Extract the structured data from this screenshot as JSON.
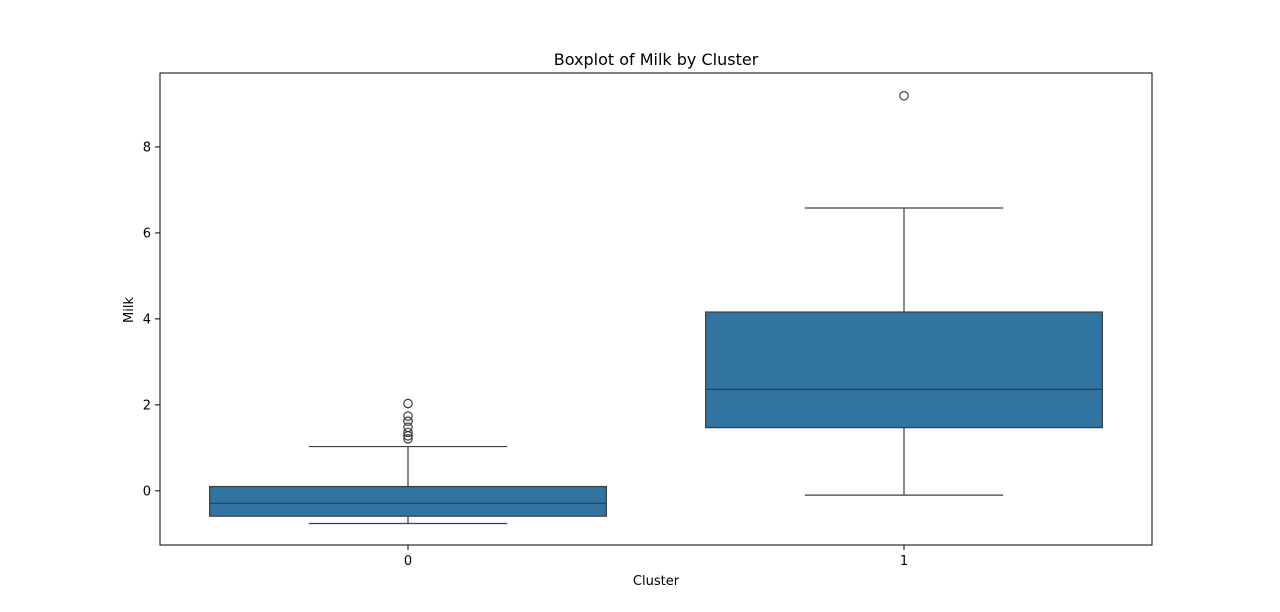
{
  "chart_data": {
    "type": "boxplot",
    "title": "Boxplot of Milk by Cluster",
    "xlabel": "Cluster",
    "ylabel": "Milk",
    "categories": [
      "0",
      "1"
    ],
    "ylim": [
      -1.26,
      9.72
    ],
    "yticks": [
      0,
      2,
      4,
      6,
      8
    ],
    "grid": false,
    "box_color": "#3274a1",
    "line_color": "#3d3d3d",
    "boxes": [
      {
        "category": "0",
        "whisker_low": -0.76,
        "q1": -0.59,
        "median": -0.29,
        "q3": 0.1,
        "whisker_high": 1.03,
        "outliers": [
          1.21,
          1.28,
          1.36,
          1.48,
          1.62,
          1.74,
          2.03
        ]
      },
      {
        "category": "1",
        "whisker_low": -0.1,
        "q1": 1.47,
        "median": 2.36,
        "q3": 4.16,
        "whisker_high": 6.58,
        "outliers": [
          9.19
        ]
      }
    ]
  }
}
